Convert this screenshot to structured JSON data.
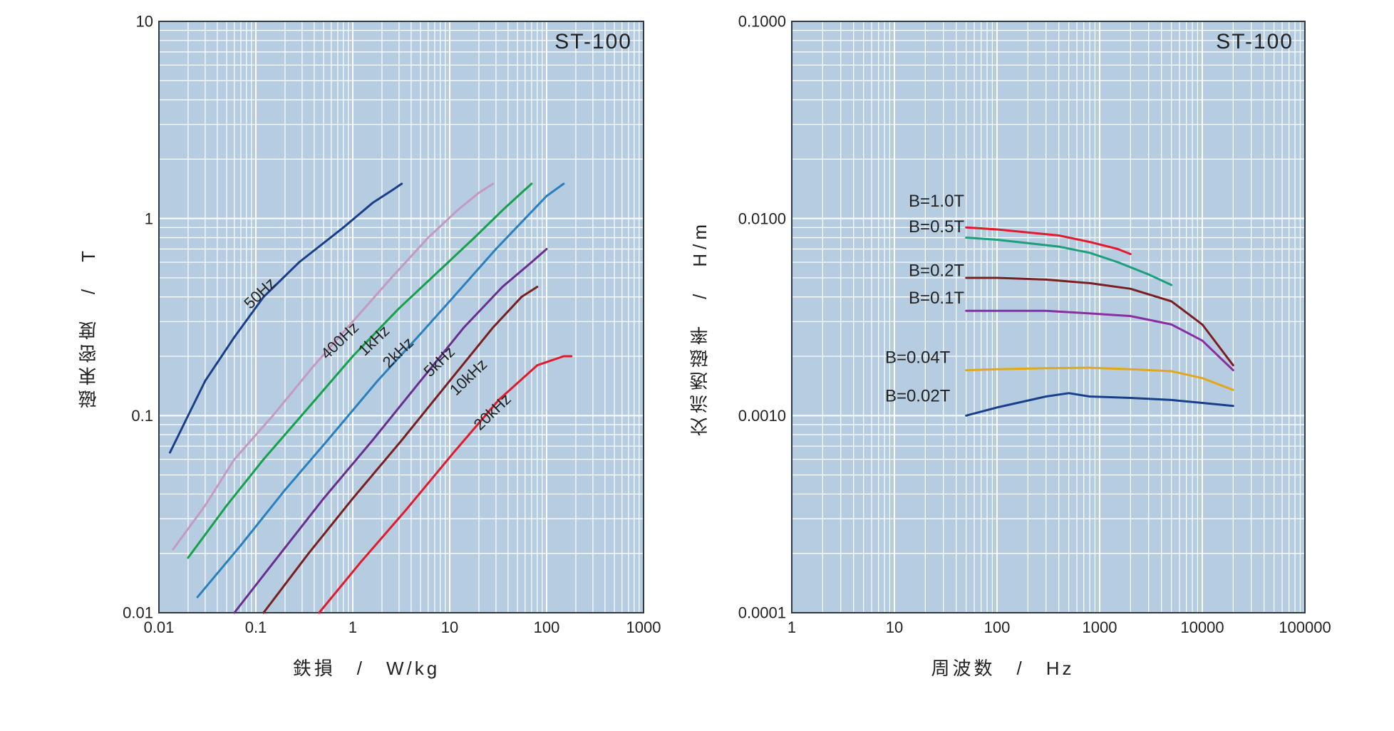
{
  "left_chart": {
    "type": "line-loglog",
    "title": "ST-100",
    "xlabel": "鉄損　/　W/kg",
    "ylabel": "磁束密度　/　T",
    "xlim": [
      0.01,
      1000
    ],
    "ylim": [
      0.01,
      10
    ],
    "xticks": [
      0.01,
      0.1,
      1,
      10,
      100,
      1000
    ],
    "xtick_labels": [
      "0.01",
      "0.1",
      "1",
      "10",
      "100",
      "1000"
    ],
    "yticks": [
      0.01,
      0.1,
      1,
      10
    ],
    "ytick_labels": [
      "0.01",
      "0.1",
      "1",
      "10"
    ],
    "plot_bg": "#b6cde1",
    "grid_color": "#ffffff",
    "frame_color": "#2f3a44",
    "label_color": "#222222",
    "tick_fontsize": 22,
    "label_fontsize": 26,
    "title_fontsize": 30,
    "line_width": 3,
    "inline_label_fontsize": 22,
    "series": [
      {
        "label": "50Hz",
        "color": "#1a3f8a",
        "x": [
          0.013,
          0.018,
          0.03,
          0.06,
          0.12,
          0.28,
          0.8,
          1.6,
          2.6,
          3.2
        ],
        "y": [
          0.065,
          0.09,
          0.15,
          0.25,
          0.4,
          0.6,
          0.9,
          1.2,
          1.4,
          1.5
        ],
        "label_at": [
          0.12,
          0.4
        ],
        "label_angle": -44
      },
      {
        "label": "400Hz",
        "color": "#c49ac2",
        "x": [
          0.014,
          0.03,
          0.06,
          0.15,
          0.4,
          1.0,
          2.5,
          6.0,
          12,
          20,
          28
        ],
        "y": [
          0.021,
          0.035,
          0.06,
          0.1,
          0.18,
          0.3,
          0.5,
          0.8,
          1.1,
          1.35,
          1.5
        ],
        "label_at": [
          0.8,
          0.23
        ],
        "label_angle": -44
      },
      {
        "label": "1kHz",
        "color": "#17a04a",
        "x": [
          0.02,
          0.05,
          0.12,
          0.35,
          1.0,
          3.0,
          8.0,
          18,
          35,
          55,
          70
        ],
        "y": [
          0.019,
          0.035,
          0.06,
          0.11,
          0.2,
          0.35,
          0.55,
          0.8,
          1.1,
          1.35,
          1.5
        ],
        "label_at": [
          1.8,
          0.23
        ],
        "label_angle": -44
      },
      {
        "label": "2kHz",
        "color": "#2a7fbf",
        "x": [
          0.025,
          0.07,
          0.2,
          0.55,
          1.8,
          5.0,
          13,
          30,
          60,
          100,
          150
        ],
        "y": [
          0.012,
          0.022,
          0.042,
          0.075,
          0.15,
          0.26,
          0.44,
          0.7,
          1.0,
          1.3,
          1.5
        ],
        "label_at": [
          3.2,
          0.2
        ],
        "label_angle": -44
      },
      {
        "label": "5kHz",
        "color": "#6a2d90",
        "x": [
          0.06,
          0.18,
          0.5,
          1.6,
          5.0,
          14,
          35,
          70,
          100
        ],
        "y": [
          0.01,
          0.02,
          0.038,
          0.075,
          0.15,
          0.28,
          0.45,
          0.6,
          0.7
        ],
        "label_at": [
          8.5,
          0.18
        ],
        "label_angle": -44
      },
      {
        "label": "10kHz",
        "color": "#7a1f1f",
        "x": [
          0.12,
          0.35,
          1.0,
          3.2,
          10,
          28,
          55,
          80
        ],
        "y": [
          0.01,
          0.02,
          0.038,
          0.075,
          0.15,
          0.28,
          0.4,
          0.45
        ],
        "label_at": [
          17,
          0.15
        ],
        "label_angle": -44
      },
      {
        "label": "20kHz",
        "color": "#e11a2c",
        "x": [
          0.45,
          1.2,
          3.5,
          11,
          32,
          80,
          150,
          180
        ],
        "y": [
          0.01,
          0.018,
          0.033,
          0.065,
          0.12,
          0.18,
          0.2,
          0.2
        ],
        "label_at": [
          30,
          0.1
        ],
        "label_angle": -44
      }
    ]
  },
  "right_chart": {
    "type": "line-loglog",
    "title": "ST-100",
    "xlabel": "周波数　/　Hz",
    "ylabel": "交流透磁率　/　H/m",
    "xlim": [
      1,
      100000
    ],
    "ylim": [
      0.0001,
      0.1
    ],
    "xticks": [
      1,
      10,
      100,
      1000,
      10000,
      100000
    ],
    "xtick_labels": [
      "1",
      "10",
      "100",
      "1000",
      "10000",
      "100000"
    ],
    "yticks": [
      0.0001,
      0.001,
      0.01,
      0.1
    ],
    "ytick_labels": [
      "0.0001",
      "0.0010",
      "0.0100",
      "0.1000"
    ],
    "plot_bg": "#b6cde1",
    "grid_color": "#ffffff",
    "frame_color": "#2f3a44",
    "label_color": "#222222",
    "tick_fontsize": 22,
    "label_fontsize": 26,
    "title_fontsize": 30,
    "line_width": 3,
    "inline_label_fontsize": 24,
    "series": [
      {
        "label": "B=1.0T",
        "color": "#e11a2c",
        "x": [
          50,
          100,
          200,
          400,
          800,
          1500,
          2000
        ],
        "y": [
          0.009,
          0.0088,
          0.0085,
          0.0082,
          0.0076,
          0.007,
          0.0066
        ],
        "label_at": [
          48,
          0.0115
        ]
      },
      {
        "label": "B=0.5T",
        "color": "#1aa07a",
        "x": [
          50,
          100,
          200,
          400,
          800,
          1500,
          3000,
          5000
        ],
        "y": [
          0.008,
          0.0078,
          0.0075,
          0.0072,
          0.0067,
          0.006,
          0.0052,
          0.0046
        ],
        "label_at": [
          48,
          0.0085
        ]
      },
      {
        "label": "B=0.2T",
        "color": "#7a1f1f",
        "x": [
          50,
          100,
          300,
          800,
          2000,
          5000,
          10000,
          20000
        ],
        "y": [
          0.005,
          0.005,
          0.0049,
          0.0047,
          0.0044,
          0.0038,
          0.0029,
          0.0018
        ],
        "label_at": [
          48,
          0.0051
        ]
      },
      {
        "label": "B=0.1T",
        "color": "#8a2da0",
        "x": [
          50,
          100,
          300,
          800,
          2000,
          5000,
          10000,
          20000
        ],
        "y": [
          0.0034,
          0.0034,
          0.0034,
          0.0033,
          0.0032,
          0.0029,
          0.0024,
          0.0017
        ],
        "label_at": [
          48,
          0.0037
        ]
      },
      {
        "label": "B=0.04T",
        "color": "#e5a71a",
        "x": [
          50,
          100,
          300,
          800,
          2000,
          5000,
          10000,
          20000
        ],
        "y": [
          0.0017,
          0.00172,
          0.00174,
          0.00175,
          0.00172,
          0.00168,
          0.00155,
          0.00135
        ],
        "label_at": [
          35,
          0.00185
        ]
      },
      {
        "label": "B=0.02T",
        "color": "#1a3f8a",
        "x": [
          50,
          100,
          300,
          500,
          800,
          2000,
          5000,
          10000,
          20000
        ],
        "y": [
          0.001,
          0.0011,
          0.00125,
          0.0013,
          0.00125,
          0.00123,
          0.0012,
          0.00116,
          0.00112
        ],
        "label_at": [
          35,
          0.00118
        ]
      }
    ]
  }
}
